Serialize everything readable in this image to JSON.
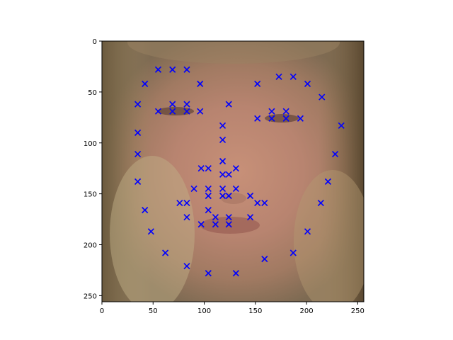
{
  "chart_data": {
    "type": "scatter",
    "title": "",
    "xlabel": "",
    "ylabel": "",
    "xlim": [
      0,
      256
    ],
    "ylim": [
      256,
      0
    ],
    "y_inverted": true,
    "grid": false,
    "background": "image",
    "background_subject": "face photograph",
    "x_ticks": [
      0,
      50,
      100,
      150,
      200,
      250
    ],
    "y_ticks": [
      0,
      50,
      100,
      150,
      200,
      250
    ],
    "marker": "x",
    "marker_color": "#0000ff",
    "series": [
      {
        "name": "",
        "points": [
          [
            55,
            28
          ],
          [
            69,
            28
          ],
          [
            83,
            28
          ],
          [
            42,
            42
          ],
          [
            96,
            42
          ],
          [
            152,
            42
          ],
          [
            173,
            35
          ],
          [
            187,
            35
          ],
          [
            201,
            42
          ],
          [
            215,
            55
          ],
          [
            35,
            62
          ],
          [
            55,
            69
          ],
          [
            69,
            62
          ],
          [
            69,
            69
          ],
          [
            83,
            62
          ],
          [
            83,
            69
          ],
          [
            96,
            69
          ],
          [
            124,
            62
          ],
          [
            152,
            76
          ],
          [
            166,
            69
          ],
          [
            166,
            76
          ],
          [
            180,
            69
          ],
          [
            180,
            76
          ],
          [
            194,
            76
          ],
          [
            234,
            83
          ],
          [
            118,
            83
          ],
          [
            35,
            90
          ],
          [
            118,
            97
          ],
          [
            35,
            111
          ],
          [
            228,
            111
          ],
          [
            118,
            118
          ],
          [
            97,
            125
          ],
          [
            104,
            125
          ],
          [
            118,
            131
          ],
          [
            124,
            131
          ],
          [
            131,
            125
          ],
          [
            35,
            138
          ],
          [
            221,
            138
          ],
          [
            90,
            145
          ],
          [
            104,
            145
          ],
          [
            104,
            152
          ],
          [
            118,
            145
          ],
          [
            118,
            152
          ],
          [
            124,
            152
          ],
          [
            131,
            145
          ],
          [
            145,
            152
          ],
          [
            152,
            159
          ],
          [
            159,
            159
          ],
          [
            76,
            159
          ],
          [
            83,
            159
          ],
          [
            214,
            159
          ],
          [
            42,
            166
          ],
          [
            104,
            166
          ],
          [
            83,
            173
          ],
          [
            111,
            173
          ],
          [
            111,
            180
          ],
          [
            124,
            173
          ],
          [
            124,
            180
          ],
          [
            145,
            173
          ],
          [
            97,
            180
          ],
          [
            48,
            187
          ],
          [
            201,
            187
          ],
          [
            62,
            208
          ],
          [
            187,
            208
          ],
          [
            159,
            214
          ],
          [
            83,
            221
          ],
          [
            104,
            228
          ],
          [
            131,
            228
          ]
        ]
      }
    ]
  }
}
